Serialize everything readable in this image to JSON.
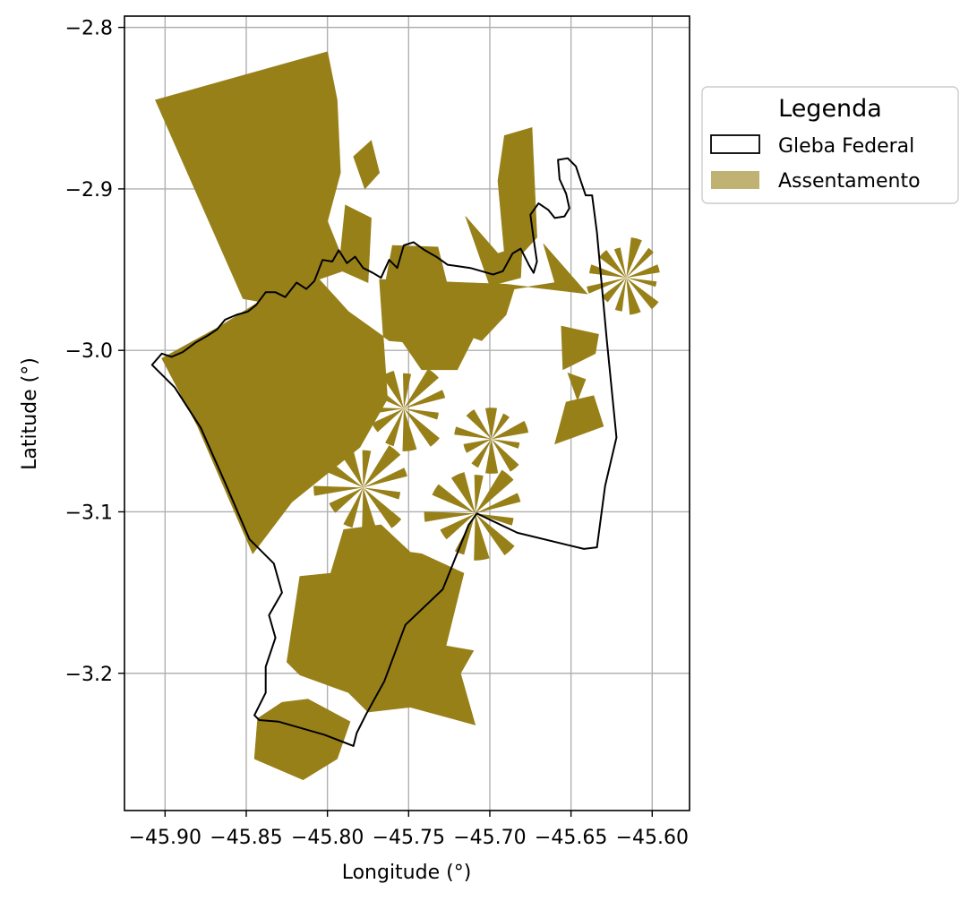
{
  "chart_data": {
    "type": "map",
    "xlabel": "Longitude (°)",
    "ylabel": "Latitude (°)",
    "xlim": [
      -45.925,
      -45.577
    ],
    "ylim": [
      -3.285,
      -2.793
    ],
    "grid": true,
    "x_ticks": [
      {
        "value": -45.9,
        "label": "−45.90"
      },
      {
        "value": -45.85,
        "label": "−45.85"
      },
      {
        "value": -45.8,
        "label": "−45.80"
      },
      {
        "value": -45.75,
        "label": "−45.75"
      },
      {
        "value": -45.7,
        "label": "−45.70"
      },
      {
        "value": -45.65,
        "label": "−45.65"
      },
      {
        "value": -45.6,
        "label": "−45.60"
      }
    ],
    "y_ticks": [
      {
        "value": -2.8,
        "label": "−2.8"
      },
      {
        "value": -2.9,
        "label": "−2.9"
      },
      {
        "value": -3.0,
        "label": "−3.0"
      },
      {
        "value": -3.1,
        "label": "−3.1"
      },
      {
        "value": -3.2,
        "label": "−3.2"
      }
    ],
    "legend": {
      "title": "Legenda",
      "placement": "outside right, top",
      "items": [
        {
          "label": "Gleba Federal",
          "style": "outline",
          "color": "#000000"
        },
        {
          "label": "Assentamento",
          "style": "fill",
          "color": "#bfb273"
        }
      ]
    },
    "colors": {
      "assentamento_fill": "#988019",
      "gleba_outline": "#000000",
      "grid": "#b0b0b0"
    },
    "gleba_federal": [
      [
        -45.908,
        -3.009
      ],
      [
        -45.902,
        -3.002
      ],
      [
        -45.896,
        -3.004
      ],
      [
        -45.889,
        -3.001
      ],
      [
        -45.881,
        -2.995
      ],
      [
        -45.874,
        -2.991
      ],
      [
        -45.868,
        -2.987
      ],
      [
        -45.863,
        -2.981
      ],
      [
        -45.856,
        -2.978
      ],
      [
        -45.849,
        -2.976
      ],
      [
        -45.844,
        -2.972
      ],
      [
        -45.838,
        -2.964
      ],
      [
        -45.832,
        -2.964
      ],
      [
        -45.826,
        -2.967
      ],
      [
        -45.819,
        -2.958
      ],
      [
        -45.813,
        -2.962
      ],
      [
        -45.808,
        -2.957
      ],
      [
        -45.803,
        -2.944
      ],
      [
        -45.797,
        -2.945
      ],
      [
        -45.793,
        -2.938
      ],
      [
        -45.788,
        -2.946
      ],
      [
        -45.783,
        -2.942
      ],
      [
        -45.778,
        -2.949
      ],
      [
        -45.772,
        -2.952
      ],
      [
        -45.767,
        -2.955
      ],
      [
        -45.762,
        -2.944
      ],
      [
        -45.757,
        -2.949
      ],
      [
        -45.753,
        -2.935
      ],
      [
        -45.747,
        -2.933
      ],
      [
        -45.74,
        -2.938
      ],
      [
        -45.733,
        -2.942
      ],
      [
        -45.726,
        -2.947
      ],
      [
        -45.719,
        -2.948
      ],
      [
        -45.712,
        -2.949
      ],
      [
        -45.705,
        -2.951
      ],
      [
        -45.698,
        -2.953
      ],
      [
        -45.692,
        -2.951
      ],
      [
        -45.686,
        -2.94
      ],
      [
        -45.681,
        -2.937
      ],
      [
        -45.676,
        -2.947
      ],
      [
        -45.673,
        -2.952
      ],
      [
        -45.671,
        -2.945
      ],
      [
        -45.673,
        -2.931
      ],
      [
        -45.675,
        -2.916
      ],
      [
        -45.67,
        -2.909
      ],
      [
        -45.664,
        -2.913
      ],
      [
        -45.66,
        -2.918
      ],
      [
        -45.654,
        -2.917
      ],
      [
        -45.651,
        -2.912
      ],
      [
        -45.653,
        -2.903
      ],
      [
        -45.657,
        -2.894
      ],
      [
        -45.658,
        -2.882
      ],
      [
        -45.652,
        -2.881
      ],
      [
        -45.647,
        -2.886
      ],
      [
        -45.644,
        -2.895
      ],
      [
        -45.641,
        -2.904
      ],
      [
        -45.637,
        -2.904
      ],
      [
        -45.634,
        -2.927
      ],
      [
        -45.628,
        -2.993
      ],
      [
        -45.622,
        -3.054
      ],
      [
        -45.629,
        -3.084
      ],
      [
        -45.634,
        -3.122
      ],
      [
        -45.642,
        -3.123
      ],
      [
        -45.683,
        -3.113
      ],
      [
        -45.708,
        -3.101
      ],
      [
        -45.713,
        -3.108
      ],
      [
        -45.729,
        -3.148
      ],
      [
        -45.752,
        -3.17
      ],
      [
        -45.765,
        -3.205
      ],
      [
        -45.776,
        -3.225
      ],
      [
        -45.782,
        -3.237
      ],
      [
        -45.784,
        -3.245
      ],
      [
        -45.802,
        -3.238
      ],
      [
        -45.83,
        -3.23
      ],
      [
        -45.842,
        -3.229
      ],
      [
        -45.845,
        -3.226
      ],
      [
        -45.838,
        -3.212
      ],
      [
        -45.838,
        -3.196
      ],
      [
        -45.832,
        -3.178
      ],
      [
        -45.836,
        -3.164
      ],
      [
        -45.828,
        -3.15
      ],
      [
        -45.833,
        -3.132
      ],
      [
        -45.848,
        -3.117
      ],
      [
        -45.863,
        -3.082
      ],
      [
        -45.878,
        -3.048
      ],
      [
        -45.894,
        -3.023
      ],
      [
        -45.908,
        -3.009
      ]
    ],
    "assentamentos": [
      [
        [
          -45.906,
          -2.845
        ],
        [
          -45.8,
          -2.815
        ],
        [
          -45.794,
          -2.845
        ],
        [
          -45.792,
          -2.89
        ],
        [
          -45.8,
          -2.92
        ],
        [
          -45.788,
          -2.95
        ],
        [
          -45.811,
          -2.958
        ],
        [
          -45.83,
          -2.972
        ],
        [
          -45.852,
          -2.968
        ],
        [
          -45.906,
          -2.845
        ]
      ],
      [
        [
          -45.784,
          -2.88
        ],
        [
          -45.773,
          -2.87
        ],
        [
          -45.768,
          -2.89
        ],
        [
          -45.777,
          -2.9
        ],
        [
          -45.784,
          -2.88
        ]
      ],
      [
        [
          -45.789,
          -2.91
        ],
        [
          -45.773,
          -2.918
        ],
        [
          -45.775,
          -2.958
        ],
        [
          -45.793,
          -2.95
        ],
        [
          -45.789,
          -2.91
        ]
      ],
      [
        [
          -45.902,
          -3.005
        ],
        [
          -45.866,
          -2.985
        ],
        [
          -45.836,
          -2.966
        ],
        [
          -45.806,
          -2.955
        ],
        [
          -45.787,
          -2.976
        ],
        [
          -45.762,
          -2.994
        ],
        [
          -45.74,
          -2.996
        ],
        [
          -45.733,
          -2.984
        ],
        [
          -45.705,
          -2.994
        ],
        [
          -45.69,
          -2.978
        ],
        [
          -45.685,
          -2.962
        ],
        [
          -45.66,
          -2.958
        ],
        [
          -45.667,
          -2.934
        ],
        [
          -45.64,
          -2.965
        ],
        [
          -45.69,
          -2.959
        ],
        [
          -45.768,
          -2.956
        ],
        [
          -45.763,
          -3.03
        ],
        [
          -45.78,
          -3.06
        ],
        [
          -45.822,
          -3.094
        ],
        [
          -45.846,
          -3.126
        ],
        [
          -45.88,
          -3.047
        ],
        [
          -45.902,
          -3.005
        ]
      ],
      [
        [
          -45.76,
          -2.935
        ],
        [
          -45.732,
          -2.936
        ],
        [
          -45.726,
          -2.96
        ],
        [
          -45.765,
          -2.962
        ],
        [
          -45.76,
          -2.935
        ]
      ],
      [
        [
          -45.715,
          -2.917
        ],
        [
          -45.695,
          -2.94
        ],
        [
          -45.68,
          -2.935
        ],
        [
          -45.681,
          -2.955
        ],
        [
          -45.7,
          -2.96
        ],
        [
          -45.715,
          -2.917
        ]
      ],
      [
        [
          -45.691,
          -2.867
        ],
        [
          -45.674,
          -2.862
        ],
        [
          -45.671,
          -2.93
        ],
        [
          -45.69,
          -2.951
        ],
        [
          -45.695,
          -2.895
        ],
        [
          -45.691,
          -2.867
        ]
      ],
      [
        [
          -45.757,
          -2.99
        ],
        [
          -45.744,
          -2.97
        ],
        [
          -45.713,
          -2.975
        ],
        [
          -45.709,
          -2.99
        ],
        [
          -45.72,
          -3.012
        ],
        [
          -45.742,
          -3.012
        ],
        [
          -45.757,
          -2.99
        ]
      ],
      [
        [
          -45.817,
          -3.14
        ],
        [
          -45.798,
          -3.138
        ],
        [
          -45.79,
          -3.111
        ],
        [
          -45.767,
          -3.108
        ],
        [
          -45.749,
          -3.125
        ],
        [
          -45.742,
          -3.126
        ],
        [
          -45.716,
          -3.138
        ],
        [
          -45.727,
          -3.183
        ],
        [
          -45.71,
          -3.186
        ],
        [
          -45.718,
          -3.2
        ],
        [
          -45.709,
          -3.232
        ],
        [
          -45.749,
          -3.221
        ],
        [
          -45.775,
          -3.224
        ],
        [
          -45.787,
          -3.212
        ],
        [
          -45.817,
          -3.201
        ],
        [
          -45.825,
          -3.193
        ],
        [
          -45.817,
          -3.14
        ]
      ],
      [
        [
          -45.843,
          -3.228
        ],
        [
          -45.828,
          -3.218
        ],
        [
          -45.812,
          -3.216
        ],
        [
          -45.786,
          -3.23
        ],
        [
          -45.794,
          -3.253
        ],
        [
          -45.815,
          -3.266
        ],
        [
          -45.845,
          -3.253
        ],
        [
          -45.843,
          -3.228
        ]
      ],
      [
        [
          -45.656,
          -2.985
        ],
        [
          -45.633,
          -2.99
        ],
        [
          -45.635,
          -3.002
        ],
        [
          -45.655,
          -3.012
        ],
        [
          -45.656,
          -2.985
        ]
      ],
      [
        [
          -45.653,
          -3.032
        ],
        [
          -45.636,
          -3.028
        ],
        [
          -45.63,
          -3.047
        ],
        [
          -45.66,
          -3.058
        ],
        [
          -45.653,
          -3.032
        ]
      ],
      [
        [
          -45.652,
          -3.014
        ],
        [
          -45.641,
          -3.018
        ],
        [
          -45.646,
          -3.031
        ],
        [
          -45.652,
          -3.014
        ]
      ]
    ],
    "fans": [
      {
        "center": [
          -45.753,
          -3.036
        ],
        "radius": 0.031,
        "wedges": 11
      },
      {
        "center": [
          -45.699,
          -3.055
        ],
        "radius": 0.025,
        "wedges": 10
      },
      {
        "center": [
          -45.778,
          -3.085
        ],
        "radius": 0.033,
        "wedges": 11
      },
      {
        "center": [
          -45.709,
          -3.101
        ],
        "radius": 0.034,
        "wedges": 11
      },
      {
        "center": [
          -45.616,
          -2.955
        ],
        "radius": 0.027,
        "wedges": 12
      }
    ]
  }
}
